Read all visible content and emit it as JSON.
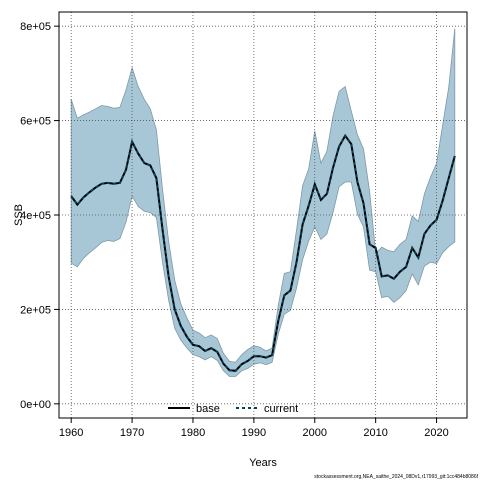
{
  "chart_data": {
    "type": "line",
    "title": "",
    "xlabel": "Years",
    "ylabel": "SSB",
    "xlim": [
      1958,
      2025
    ],
    "ylim": [
      -30000,
      830000
    ],
    "xticks": [
      1960,
      1970,
      1980,
      1990,
      2000,
      2010,
      2020
    ],
    "yticks": [
      0,
      200000,
      400000,
      600000,
      800000
    ],
    "ytick_labels": [
      "0e+00",
      "2e+05",
      "4e+05",
      "6e+05",
      "8e+05"
    ],
    "grid": true,
    "legend_position": "bottom-center",
    "x": [
      1960,
      1961,
      1962,
      1963,
      1964,
      1965,
      1966,
      1967,
      1968,
      1969,
      1970,
      1971,
      1972,
      1973,
      1974,
      1975,
      1976,
      1977,
      1978,
      1979,
      1980,
      1981,
      1982,
      1983,
      1984,
      1985,
      1986,
      1987,
      1988,
      1989,
      1990,
      1991,
      1992,
      1993,
      1994,
      1995,
      1996,
      1997,
      1998,
      1999,
      2000,
      2001,
      2002,
      2003,
      2004,
      2005,
      2006,
      2007,
      2008,
      2009,
      2010,
      2011,
      2012,
      2013,
      2014,
      2015,
      2016,
      2017,
      2018,
      2019,
      2020,
      2021,
      2022,
      2023
    ],
    "series": [
      {
        "name": "base",
        "color": "#000000",
        "values": [
          440000,
          422000,
          437000,
          448000,
          458000,
          466000,
          468000,
          466000,
          468000,
          496000,
          555000,
          530000,
          510000,
          505000,
          478000,
          370000,
          270000,
          200000,
          165000,
          142000,
          125000,
          122000,
          112000,
          118000,
          110000,
          85000,
          71000,
          70000,
          84000,
          91000,
          101000,
          101000,
          98000,
          103000,
          175000,
          230000,
          240000,
          300000,
          380000,
          420000,
          465000,
          432000,
          445000,
          500000,
          545000,
          568000,
          550000,
          470000,
          425000,
          338000,
          330000,
          270000,
          272000,
          265000,
          280000,
          290000,
          330000,
          310000,
          360000,
          378000,
          390000,
          430000,
          478000,
          525000
        ]
      },
      {
        "name": "current",
        "color": "#0c3f57",
        "dashed": true,
        "values": [
          440000,
          422000,
          437000,
          448000,
          458000,
          466000,
          468000,
          466000,
          468000,
          496000,
          555000,
          530000,
          510000,
          505000,
          478000,
          370000,
          270000,
          200000,
          165000,
          142000,
          125000,
          122000,
          112000,
          118000,
          110000,
          85000,
          71000,
          70000,
          84000,
          91000,
          101000,
          101000,
          98000,
          103000,
          175000,
          230000,
          240000,
          300000,
          380000,
          420000,
          465000,
          432000,
          445000,
          500000,
          545000,
          568000,
          550000,
          470000,
          425000,
          338000,
          330000,
          270000,
          272000,
          265000,
          280000,
          290000,
          330000,
          310000,
          360000,
          378000,
          390000,
          430000,
          478000,
          525000
        ]
      }
    ],
    "band": {
      "color": "#a7c6d6",
      "upper": [
        645000,
        605000,
        612000,
        618000,
        625000,
        632000,
        630000,
        626000,
        628000,
        665000,
        712000,
        672000,
        645000,
        625000,
        580000,
        455000,
        345000,
        262000,
        212000,
        182000,
        156000,
        150000,
        140000,
        146000,
        138000,
        107000,
        90000,
        88000,
        104000,
        115000,
        123000,
        120000,
        112000,
        118000,
        208000,
        276000,
        280000,
        368000,
        462000,
        498000,
        578000,
        510000,
        535000,
        610000,
        662000,
        672000,
        620000,
        570000,
        540000,
        450000,
        318000,
        332000,
        325000,
        322000,
        338000,
        348000,
        398000,
        386000,
        445000,
        480000,
        510000,
        590000,
        670000,
        795000
      ],
      "lower": [
        298000,
        290000,
        308000,
        320000,
        330000,
        342000,
        346000,
        344000,
        350000,
        385000,
        440000,
        418000,
        408000,
        405000,
        395000,
        300000,
        220000,
        160000,
        135000,
        118000,
        104000,
        100000,
        93000,
        100000,
        92000,
        70000,
        58000,
        58000,
        70000,
        75000,
        84000,
        87000,
        83000,
        88000,
        147000,
        190000,
        198000,
        245000,
        305000,
        345000,
        375000,
        348000,
        360000,
        405000,
        460000,
        470000,
        470000,
        402000,
        375000,
        283000,
        280000,
        225000,
        228000,
        215000,
        225000,
        240000,
        275000,
        252000,
        292000,
        300000,
        297000,
        320000,
        333000,
        343000
      ]
    }
  },
  "footnote": "stockassessment.org,NEA_saithe_2024_08Dv1,r17993_git:1cc484b8086f"
}
